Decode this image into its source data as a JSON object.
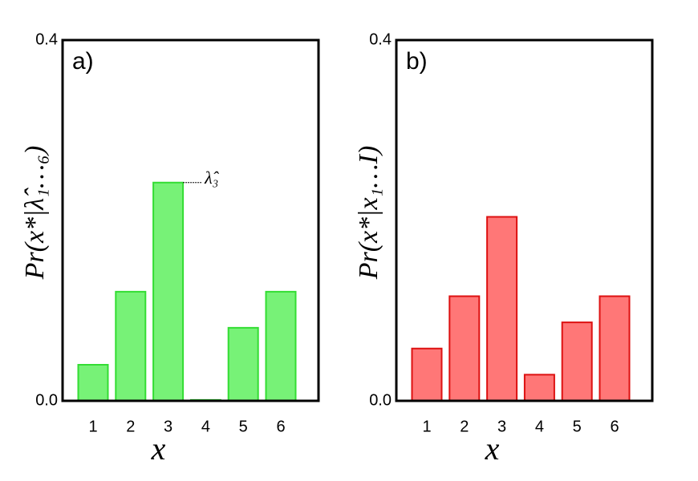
{
  "chart_data": [
    {
      "type": "bar",
      "panel_label": "a)",
      "ylabel": "Pr(x*|λ̂₁…₆)",
      "xlabel": "x",
      "annotation": "λ̂₃",
      "categories": [
        "1",
        "2",
        "3",
        "4",
        "5",
        "6"
      ],
      "values": [
        0.04,
        0.121,
        0.242,
        0.001,
        0.081,
        0.121
      ],
      "color": "#77f277",
      "edge_color": "#33dd33",
      "ylim": [
        0,
        0.4
      ],
      "yticks": [
        {
          "value": 0,
          "label": "0.0"
        },
        {
          "value": 0.4,
          "label": "0.4"
        }
      ]
    },
    {
      "type": "bar",
      "panel_label": "b)",
      "ylabel": "Pr(x*|x₁…I)",
      "xlabel": "x",
      "categories": [
        "1",
        "2",
        "3",
        "4",
        "5",
        "6"
      ],
      "values": [
        0.058,
        0.116,
        0.204,
        0.029,
        0.087,
        0.116
      ],
      "color": "#ff7777",
      "edge_color": "#dd1111",
      "ylim": [
        0,
        0.4
      ],
      "yticks": [
        {
          "value": 0,
          "label": "0.0"
        },
        {
          "value": 0.4,
          "label": "0.4"
        }
      ]
    }
  ]
}
